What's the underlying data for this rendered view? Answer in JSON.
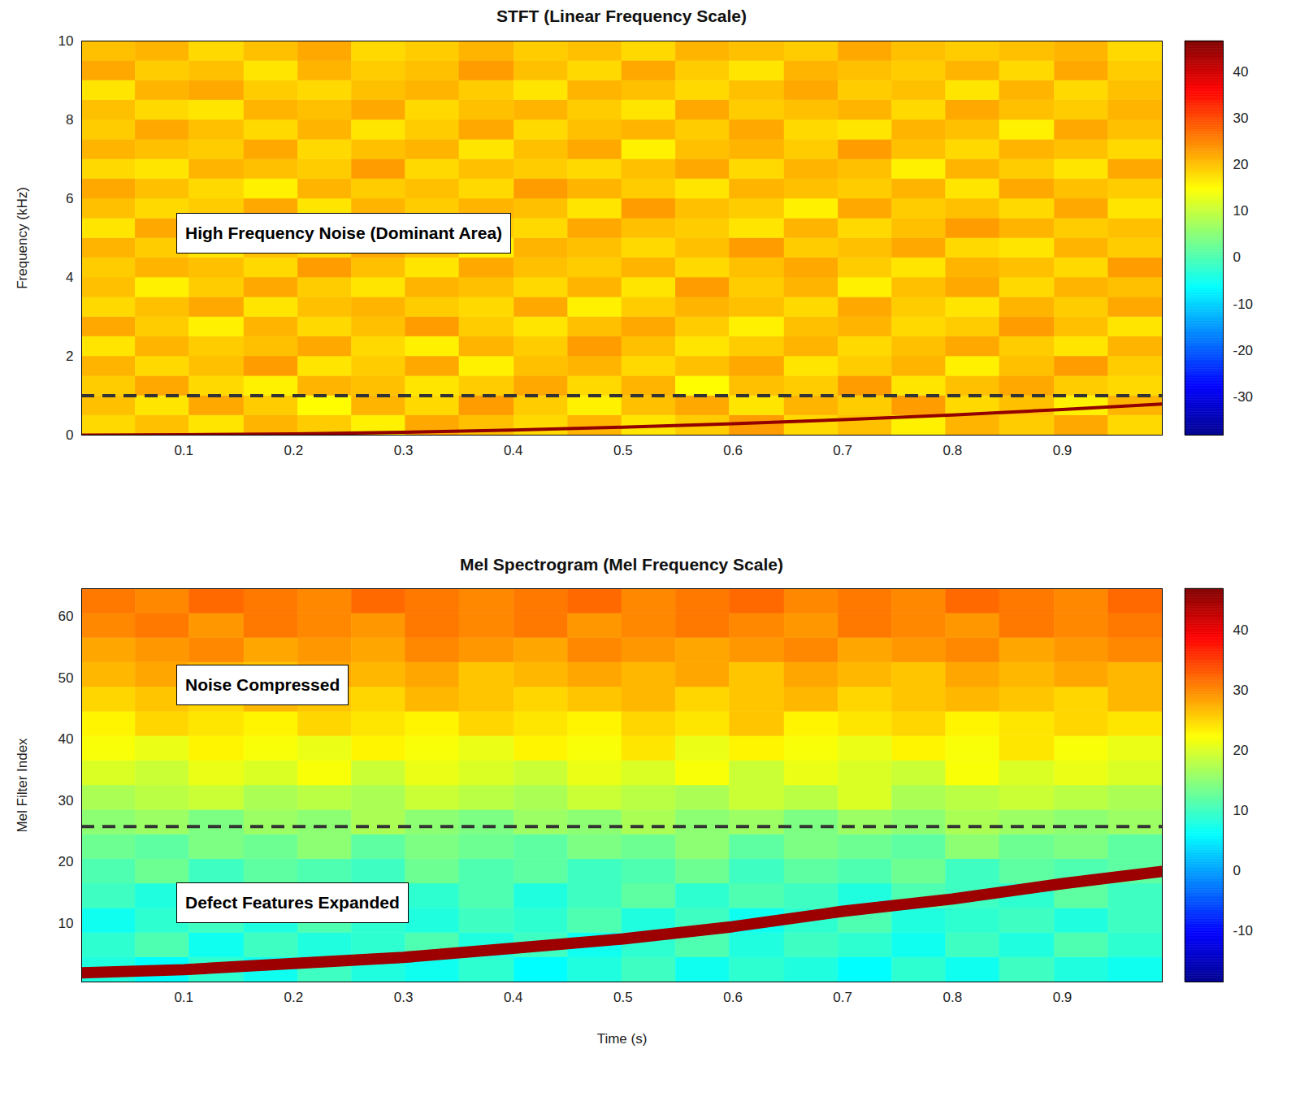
{
  "chart_data": [
    {
      "type": "heatmap",
      "title": "STFT (Linear Frequency Scale)",
      "ylabel": "Frequency (kHz)",
      "xlim": [
        0.007,
        0.991
      ],
      "xticks": [
        0.1,
        0.2,
        0.3,
        0.4,
        0.5,
        0.6,
        0.7,
        0.8,
        0.9
      ],
      "ylim": [
        0,
        10
      ],
      "yticks": [
        0,
        2,
        4,
        6,
        8,
        10
      ],
      "x_bins": [
        0.007,
        0.056,
        0.105,
        0.155,
        0.204,
        0.253,
        0.302,
        0.351,
        0.401,
        0.45,
        0.499,
        0.548,
        0.597,
        0.647,
        0.696,
        0.745,
        0.794,
        0.843,
        0.893,
        0.942,
        0.991
      ],
      "y_bins": [
        0,
        0.5,
        1,
        1.5,
        2,
        2.5,
        3,
        3.5,
        4,
        4.5,
        5,
        5.5,
        6,
        6.5,
        7,
        7.5,
        8,
        8.5,
        9,
        9.5,
        10
      ],
      "values": [
        [
          18,
          20,
          17,
          21,
          19,
          16,
          22,
          20,
          18,
          21,
          17,
          19,
          23,
          18,
          20,
          16,
          21,
          19,
          22,
          18
        ],
        [
          20,
          17,
          22,
          19,
          15,
          21,
          18,
          23,
          19,
          16,
          20,
          22,
          17,
          21,
          19,
          23,
          18,
          20,
          16,
          21
        ],
        [
          19,
          22,
          18,
          16,
          21,
          20,
          17,
          19,
          22,
          18,
          21,
          15,
          20,
          19,
          23,
          17,
          20,
          22,
          19,
          18
        ],
        [
          21,
          18,
          20,
          23,
          17,
          19,
          22,
          16,
          20,
          21,
          18,
          20,
          22,
          17,
          19,
          21,
          16,
          20,
          23,
          19
        ],
        [
          17,
          21,
          19,
          20,
          22,
          18,
          16,
          21,
          19,
          23,
          20,
          17,
          19,
          21,
          18,
          20,
          22,
          19,
          17,
          21
        ],
        [
          22,
          19,
          16,
          21,
          18,
          20,
          23,
          19,
          17,
          20,
          22,
          19,
          16,
          20,
          21,
          18,
          19,
          23,
          20,
          17
        ],
        [
          18,
          20,
          22,
          17,
          20,
          21,
          19,
          18,
          22,
          16,
          19,
          21,
          20,
          18,
          22,
          19,
          17,
          21,
          19,
          22
        ],
        [
          20,
          16,
          19,
          22,
          19,
          17,
          21,
          20,
          18,
          21,
          17,
          23,
          19,
          21,
          16,
          20,
          22,
          18,
          21,
          20
        ],
        [
          19,
          21,
          20,
          18,
          23,
          20,
          17,
          22,
          20,
          19,
          21,
          18,
          20,
          22,
          19,
          17,
          21,
          20,
          18,
          23
        ],
        [
          21,
          19,
          17,
          20,
          18,
          22,
          20,
          16,
          21,
          20,
          18,
          20,
          23,
          19,
          20,
          22,
          18,
          17,
          21,
          19
        ],
        [
          17,
          22,
          21,
          19,
          20,
          16,
          22,
          19,
          18,
          22,
          20,
          19,
          17,
          21,
          18,
          20,
          23,
          21,
          19,
          20
        ],
        [
          20,
          18,
          19,
          22,
          17,
          21,
          19,
          21,
          20,
          17,
          23,
          20,
          19,
          16,
          22,
          19,
          20,
          18,
          22,
          17
        ],
        [
          22,
          20,
          18,
          16,
          21,
          19,
          20,
          18,
          23,
          21,
          19,
          17,
          21,
          20,
          19,
          21,
          17,
          22,
          20,
          19
        ],
        [
          18,
          17,
          21,
          20,
          19,
          23,
          18,
          20,
          19,
          18,
          20,
          22,
          18,
          21,
          20,
          16,
          21,
          19,
          17,
          22
        ],
        [
          21,
          20,
          19,
          22,
          18,
          20,
          21,
          17,
          20,
          22,
          16,
          20,
          21,
          19,
          23,
          20,
          18,
          21,
          20,
          18
        ],
        [
          19,
          22,
          20,
          18,
          21,
          17,
          19,
          22,
          18,
          20,
          21,
          19,
          22,
          18,
          17,
          21,
          20,
          16,
          22,
          20
        ],
        [
          20,
          18,
          17,
          21,
          20,
          22,
          18,
          20,
          21,
          19,
          17,
          22,
          19,
          20,
          21,
          18,
          22,
          20,
          19,
          21
        ],
        [
          17,
          21,
          22,
          19,
          18,
          20,
          21,
          19,
          17,
          21,
          20,
          18,
          20,
          22,
          19,
          20,
          17,
          21,
          18,
          20
        ],
        [
          22,
          19,
          20,
          17,
          21,
          19,
          20,
          23,
          20,
          18,
          22,
          19,
          17,
          21,
          20,
          19,
          21,
          18,
          22,
          19
        ],
        [
          20,
          21,
          18,
          20,
          22,
          18,
          19,
          21,
          19,
          20,
          18,
          21,
          20,
          19,
          22,
          20,
          19,
          20,
          21,
          18
        ]
      ],
      "colorbar": {
        "range": [
          -38.2,
          46.6
        ],
        "ticks": [
          -30,
          -20,
          -10,
          0,
          10,
          20,
          30,
          40
        ]
      },
      "ridge": {
        "x": [
          0.007,
          0.1,
          0.2,
          0.3,
          0.4,
          0.5,
          0.6,
          0.7,
          0.8,
          0.9,
          0.991
        ],
        "y": [
          0,
          0.01,
          0.03,
          0.07,
          0.13,
          0.2,
          0.29,
          0.39,
          0.51,
          0.65,
          0.79
        ],
        "value": 45
      },
      "reference_line": {
        "y": 1,
        "line_style": "dashed",
        "color": "#333333"
      },
      "annotations": [
        "High Frequency Noise (Dominant Area)"
      ]
    },
    {
      "type": "heatmap",
      "title": "Mel Spectrogram (Mel Frequency Scale)",
      "xlabel": "Time (s)",
      "ylabel": "Mel Filter Index",
      "xlim": [
        0.007,
        0.991
      ],
      "xticks": [
        0.1,
        0.2,
        0.3,
        0.4,
        0.5,
        0.6,
        0.7,
        0.8,
        0.9
      ],
      "ylim": [
        0.5,
        64.5
      ],
      "yticks": [
        10,
        20,
        30,
        40,
        50,
        60
      ],
      "x_bins": [
        0.007,
        0.056,
        0.105,
        0.155,
        0.204,
        0.253,
        0.302,
        0.351,
        0.401,
        0.45,
        0.499,
        0.548,
        0.597,
        0.647,
        0.696,
        0.745,
        0.794,
        0.843,
        0.893,
        0.942,
        0.991
      ],
      "y_bins": [
        0.5,
        4.5,
        8.5,
        12.5,
        16.5,
        20.5,
        24.5,
        28.5,
        32.5,
        36.5,
        40.5,
        44.5,
        48.5,
        52.5,
        56.5,
        60.5,
        64.5
      ],
      "values": [
        [
          8,
          6,
          9,
          7,
          10,
          8,
          7,
          9,
          6,
          8,
          10,
          7,
          9,
          8,
          6,
          9,
          7,
          10,
          8,
          7
        ],
        [
          9,
          11,
          7,
          10,
          8,
          9,
          11,
          8,
          10,
          7,
          9,
          11,
          8,
          10,
          9,
          7,
          10,
          8,
          11,
          9
        ],
        [
          7,
          9,
          10,
          8,
          11,
          9,
          8,
          10,
          9,
          11,
          8,
          10,
          7,
          9,
          11,
          8,
          9,
          10,
          8,
          10
        ],
        [
          10,
          8,
          11,
          9,
          10,
          12,
          9,
          11,
          8,
          10,
          12,
          9,
          11,
          10,
          8,
          11,
          10,
          9,
          12,
          10
        ],
        [
          11,
          13,
          10,
          12,
          11,
          10,
          13,
          11,
          12,
          10,
          11,
          13,
          10,
          12,
          11,
          13,
          10,
          12,
          11,
          12
        ],
        [
          13,
          12,
          14,
          13,
          15,
          12,
          14,
          13,
          12,
          14,
          13,
          15,
          12,
          14,
          13,
          12,
          15,
          13,
          14,
          12
        ],
        [
          15,
          16,
          14,
          16,
          15,
          17,
          15,
          14,
          16,
          15,
          17,
          15,
          16,
          14,
          16,
          15,
          17,
          16,
          15,
          16
        ],
        [
          17,
          18,
          19,
          17,
          18,
          17,
          19,
          18,
          17,
          19,
          18,
          17,
          19,
          18,
          20,
          17,
          18,
          19,
          18,
          17
        ],
        [
          20,
          19,
          21,
          20,
          22,
          19,
          21,
          20,
          19,
          21,
          20,
          22,
          19,
          21,
          20,
          19,
          22,
          20,
          21,
          20
        ],
        [
          22,
          21,
          23,
          22,
          21,
          23,
          22,
          21,
          23,
          22,
          24,
          21,
          23,
          22,
          21,
          23,
          22,
          24,
          22,
          21
        ],
        [
          23,
          25,
          24,
          23,
          25,
          24,
          23,
          25,
          24,
          23,
          25,
          24,
          26,
          23,
          24,
          25,
          23,
          24,
          25,
          24
        ],
        [
          25,
          26,
          25,
          27,
          26,
          25,
          27,
          26,
          25,
          26,
          27,
          25,
          26,
          27,
          25,
          26,
          27,
          26,
          25,
          27
        ],
        [
          27,
          28,
          27,
          26,
          28,
          27,
          28,
          26,
          27,
          28,
          27,
          28,
          26,
          28,
          27,
          26,
          28,
          27,
          28,
          27
        ],
        [
          28,
          29,
          30,
          28,
          29,
          28,
          30,
          29,
          28,
          30,
          29,
          28,
          29,
          30,
          28,
          29,
          30,
          28,
          29,
          30
        ],
        [
          30,
          31,
          29,
          31,
          30,
          29,
          31,
          30,
          31,
          29,
          30,
          31,
          30,
          29,
          31,
          30,
          29,
          31,
          30,
          31
        ],
        [
          31,
          30,
          32,
          31,
          30,
          32,
          31,
          30,
          31,
          32,
          30,
          31,
          32,
          30,
          31,
          30,
          32,
          31,
          30,
          32
        ]
      ],
      "colorbar": {
        "range": [
          -18.5,
          46.9
        ],
        "ticks": [
          -10,
          0,
          10,
          20,
          30,
          40
        ]
      },
      "ridge": {
        "x": [
          0.007,
          0.1,
          0.2,
          0.3,
          0.4,
          0.5,
          0.6,
          0.7,
          0.8,
          0.9,
          0.991
        ],
        "y": [
          2,
          2.5,
          3.5,
          4.5,
          6,
          7.5,
          9.5,
          12,
          14,
          16.5,
          18.5
        ],
        "value": 45
      },
      "reference_line": {
        "y": 25.8,
        "line_style": "dashed",
        "color": "#333333"
      },
      "annotations": [
        "Noise Compressed",
        "Defect Features Expanded"
      ]
    }
  ]
}
